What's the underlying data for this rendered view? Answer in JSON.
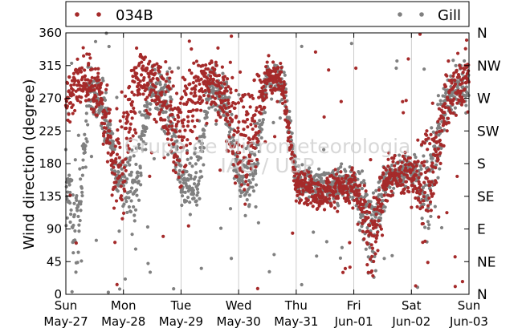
{
  "chart_data": {
    "type": "scatter",
    "ylabel": "Wind direction (degree)",
    "ylim": [
      0,
      360
    ],
    "yticks": [
      0,
      45,
      90,
      135,
      180,
      225,
      270,
      315,
      360
    ],
    "grid": "vertical lines at each day",
    "legend_placement": "above plot, full width",
    "x_tick_labels": [
      {
        "day": "Sun",
        "date": "May-27"
      },
      {
        "day": "Mon",
        "date": "May-28"
      },
      {
        "day": "Tue",
        "date": "May-29"
      },
      {
        "day": "Wed",
        "date": "May-30"
      },
      {
        "day": "Thu",
        "date": "May-31"
      },
      {
        "day": "Fri",
        "date": "Jun-01"
      },
      {
        "day": "Sat",
        "date": "Jun-02"
      },
      {
        "day": "Sun",
        "date": "Jun-03"
      }
    ],
    "compass_labels": [
      {
        "label": "N",
        "value": 360
      },
      {
        "label": "NW",
        "value": 315
      },
      {
        "label": "W",
        "value": 270
      },
      {
        "label": "SW",
        "value": 225
      },
      {
        "label": "S",
        "value": 180
      },
      {
        "label": "SE",
        "value": 135
      },
      {
        "label": "E",
        "value": 90
      },
      {
        "label": "NE",
        "value": 45
      },
      {
        "label": "N",
        "value": 0
      }
    ],
    "watermark": [
      "Grupo de Micrometeorologia",
      "IAG / USP"
    ],
    "series": [
      {
        "name": "034B",
        "color": "#a52a2a",
        "sample_profile": [
          {
            "day": 0.0,
            "center": 265,
            "spread": 25
          },
          {
            "day": 0.3,
            "center": 300,
            "spread": 30
          },
          {
            "day": 0.6,
            "center": 270,
            "spread": 35
          },
          {
            "day": 0.85,
            "center": 170,
            "spread": 60
          },
          {
            "day": 1.0,
            "center": 190,
            "spread": 70
          },
          {
            "day": 1.3,
            "center": 310,
            "spread": 30
          },
          {
            "day": 1.6,
            "center": 280,
            "spread": 40
          },
          {
            "day": 1.9,
            "center": 230,
            "spread": 70
          },
          {
            "day": 2.1,
            "center": 240,
            "spread": 70
          },
          {
            "day": 2.4,
            "center": 300,
            "spread": 30
          },
          {
            "day": 2.7,
            "center": 280,
            "spread": 40
          },
          {
            "day": 2.95,
            "center": 220,
            "spread": 70
          },
          {
            "day": 3.2,
            "center": 220,
            "spread": 70
          },
          {
            "day": 3.5,
            "center": 300,
            "spread": 20
          },
          {
            "day": 3.75,
            "center": 290,
            "spread": 20
          },
          {
            "day": 4.0,
            "center": 150,
            "spread": 20
          },
          {
            "day": 4.5,
            "center": 140,
            "spread": 20
          },
          {
            "day": 5.0,
            "center": 150,
            "spread": 20
          },
          {
            "day": 5.3,
            "center": 80,
            "spread": 50
          },
          {
            "day": 5.6,
            "center": 160,
            "spread": 30
          },
          {
            "day": 6.0,
            "center": 165,
            "spread": 25
          },
          {
            "day": 6.3,
            "center": 150,
            "spread": 70
          },
          {
            "day": 6.6,
            "center": 265,
            "spread": 40
          },
          {
            "day": 7.0,
            "center": 300,
            "spread": 30
          }
        ]
      },
      {
        "name": "Gill",
        "color": "#808080",
        "sample_profile": [
          {
            "day": 0.0,
            "center": 150,
            "spread": 45
          },
          {
            "day": 0.2,
            "center": 80,
            "spread": 70
          },
          {
            "day": 0.4,
            "center": 285,
            "spread": 25
          },
          {
            "day": 0.7,
            "center": 250,
            "spread": 35
          },
          {
            "day": 0.9,
            "center": 160,
            "spread": 20
          },
          {
            "day": 1.2,
            "center": 150,
            "spread": 60
          },
          {
            "day": 1.5,
            "center": 290,
            "spread": 25
          },
          {
            "day": 1.8,
            "center": 260,
            "spread": 40
          },
          {
            "day": 2.0,
            "center": 155,
            "spread": 20
          },
          {
            "day": 2.3,
            "center": 160,
            "spread": 50
          },
          {
            "day": 2.5,
            "center": 285,
            "spread": 25
          },
          {
            "day": 2.8,
            "center": 260,
            "spread": 40
          },
          {
            "day": 3.0,
            "center": 155,
            "spread": 20
          },
          {
            "day": 3.3,
            "center": 170,
            "spread": 40
          },
          {
            "day": 3.5,
            "center": 300,
            "spread": 20
          },
          {
            "day": 3.8,
            "center": 285,
            "spread": 20
          },
          {
            "day": 4.0,
            "center": 155,
            "spread": 20
          },
          {
            "day": 4.5,
            "center": 150,
            "spread": 20
          },
          {
            "day": 5.0,
            "center": 150,
            "spread": 20
          },
          {
            "day": 5.3,
            "center": 80,
            "spread": 50
          },
          {
            "day": 5.6,
            "center": 165,
            "spread": 20
          },
          {
            "day": 6.0,
            "center": 170,
            "spread": 15
          },
          {
            "day": 6.3,
            "center": 140,
            "spread": 60
          },
          {
            "day": 6.6,
            "center": 270,
            "spread": 30
          },
          {
            "day": 7.0,
            "center": 290,
            "spread": 30
          }
        ]
      }
    ]
  }
}
